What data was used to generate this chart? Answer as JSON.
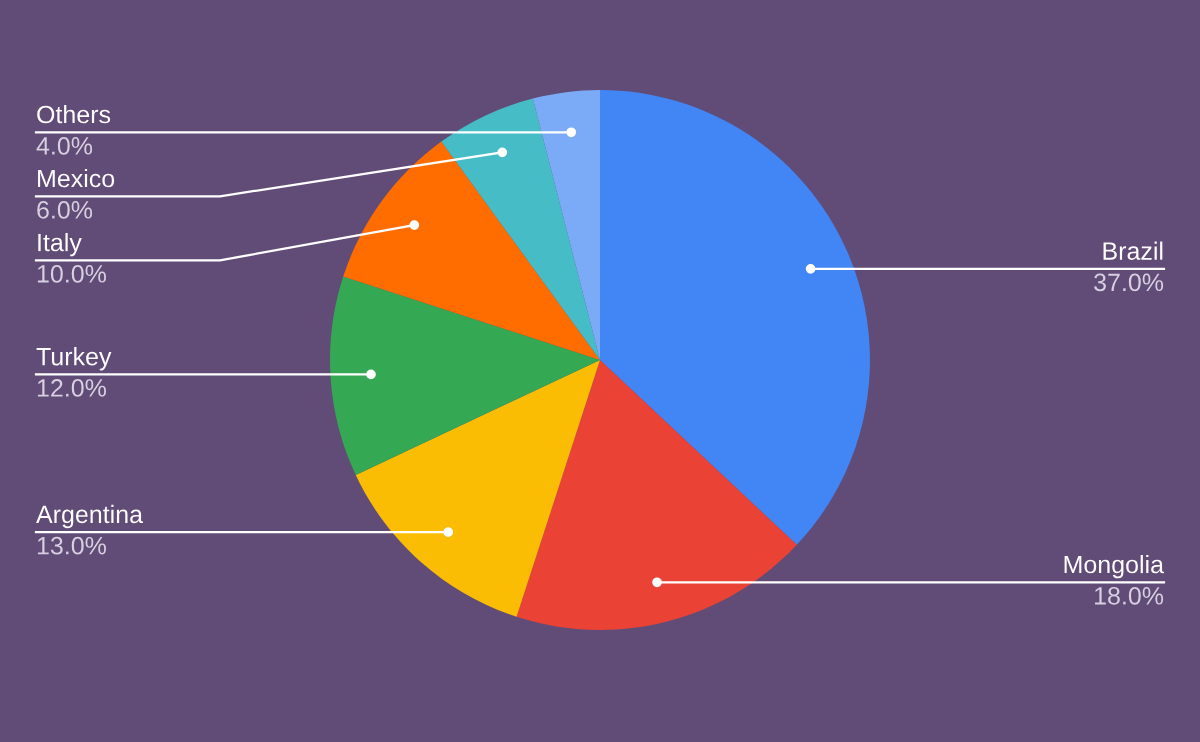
{
  "chart_data": {
    "type": "pie",
    "categories": [
      "Brazil",
      "Mongolia",
      "Argentina",
      "Turkey",
      "Italy",
      "Mexico",
      "Others"
    ],
    "values": [
      37,
      18,
      13,
      12,
      10,
      6,
      4
    ],
    "value_labels": [
      "37.0%",
      "18.0%",
      "13.0%",
      "12.0%",
      "10.0%",
      "6.0%",
      "4.0%"
    ],
    "colors": [
      "#4285f4",
      "#ea4335",
      "#fbbc04",
      "#34a853",
      "#ff6d01",
      "#46bdc6",
      "#7baaf7"
    ]
  }
}
